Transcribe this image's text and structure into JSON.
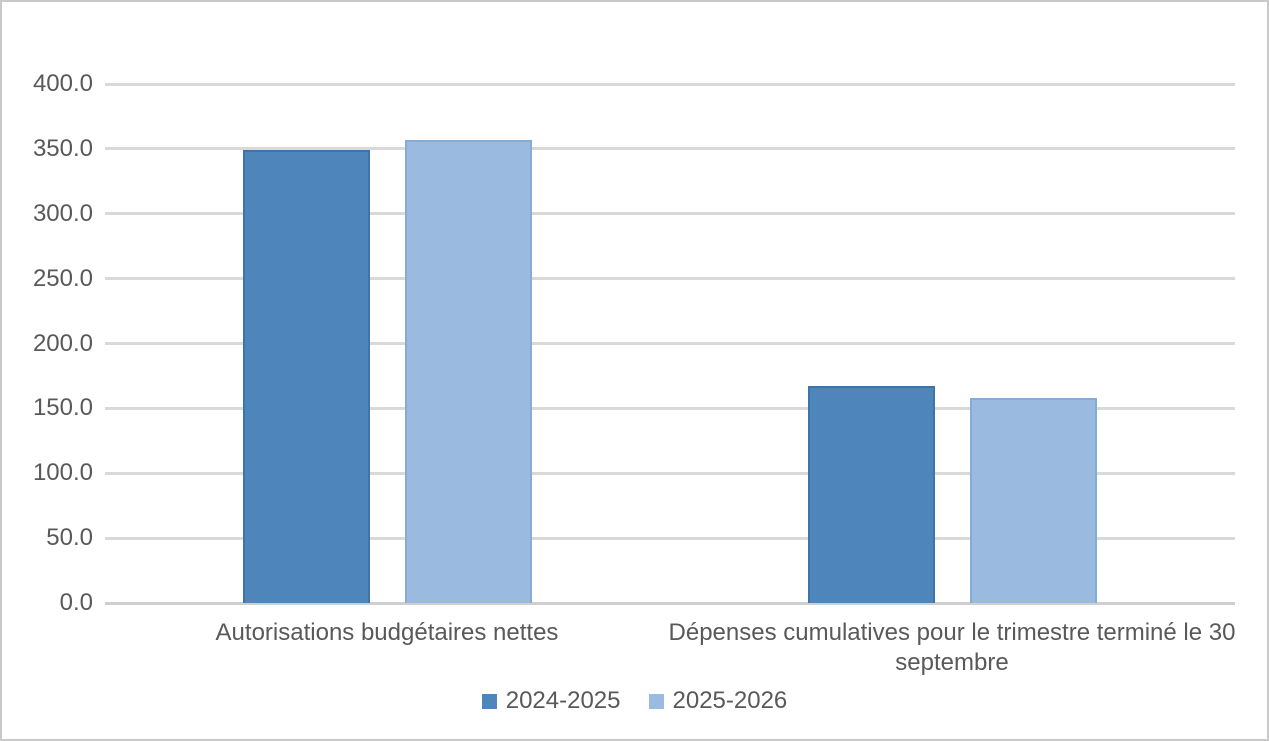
{
  "chart_data": {
    "type": "bar",
    "title": "",
    "xlabel": "",
    "ylabel": "",
    "categories": [
      "Autorisations budgétaires nettes",
      "Dépenses cumulatives pour le trimestre terminé le 30 septembre"
    ],
    "series": [
      {
        "name": "2024-2025",
        "color": "#4E86BC",
        "border_color": "#3E74A8",
        "values": [
          349.0,
          167.5
        ]
      },
      {
        "name": "2025-2026",
        "color": "#9ABADF",
        "border_color": "#86ABD6",
        "values": [
          356.5,
          158.0
        ]
      }
    ],
    "ylim": [
      0,
      400
    ],
    "ytick_labels": [
      "0.0",
      "50.0",
      "100.0",
      "150.0",
      "200.0",
      "250.0",
      "300.0",
      "350.0",
      "400.0"
    ],
    "grid": true,
    "legend_position": "bottom"
  },
  "colors": {
    "gridline": "#D9D9D9",
    "axis_line": "#CFCFCF",
    "text": "#595959",
    "frame_border": "#C9C9C9",
    "background": "#FFFFFF"
  }
}
